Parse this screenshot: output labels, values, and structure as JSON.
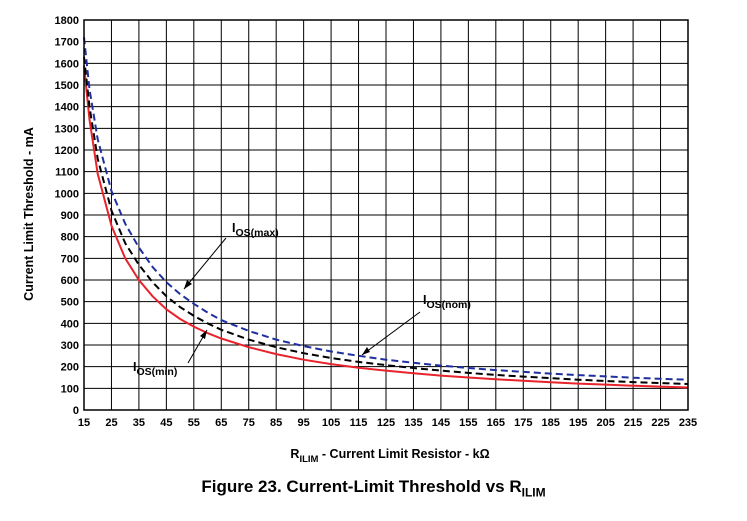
{
  "chart_data": {
    "type": "line",
    "xlabel_main": "R",
    "xlabel_sub": "ILIM",
    "xlabel_rest": " - Current Limit Resistor - kΩ",
    "ylabel": "Current Limit Threshold - mA",
    "xlim": [
      15,
      235
    ],
    "ylim": [
      0,
      1800
    ],
    "x_ticks": [
      15,
      25,
      35,
      45,
      55,
      65,
      75,
      85,
      95,
      105,
      115,
      125,
      135,
      145,
      155,
      165,
      175,
      185,
      195,
      205,
      215,
      225,
      235
    ],
    "y_ticks": [
      0,
      100,
      200,
      300,
      400,
      500,
      600,
      700,
      800,
      900,
      1000,
      1100,
      1200,
      1300,
      1400,
      1500,
      1600,
      1700,
      1800
    ],
    "grid": true,
    "series": [
      {
        "name_main": "I",
        "name_sub": "OS(max)",
        "color": "#1f2f9e",
        "dash": "7,4",
        "x": [
          15,
          17,
          20,
          25,
          30,
          35,
          40,
          45,
          50,
          55,
          60,
          65,
          75,
          85,
          95,
          105,
          115,
          125,
          135,
          145,
          155,
          165,
          175,
          185,
          195,
          205,
          215,
          225,
          235
        ],
        "y": [
          1720,
          1480,
          1250,
          1010,
          860,
          750,
          660,
          590,
          535,
          490,
          450,
          415,
          365,
          325,
          295,
          270,
          250,
          232,
          218,
          205,
          194,
          184,
          176,
          168,
          161,
          155,
          149,
          144,
          140
        ]
      },
      {
        "name_main": "I",
        "name_sub": "OS(nom)",
        "color": "#000000",
        "dash": "7,4",
        "x": [
          15,
          17,
          20,
          25,
          30,
          35,
          40,
          45,
          50,
          55,
          60,
          65,
          75,
          85,
          95,
          105,
          115,
          125,
          135,
          145,
          155,
          165,
          175,
          185,
          195,
          205,
          215,
          225,
          235
        ],
        "y": [
          1630,
          1400,
          1160,
          920,
          770,
          670,
          590,
          525,
          475,
          435,
          400,
          370,
          325,
          290,
          262,
          240,
          222,
          207,
          194,
          182,
          171,
          162,
          154,
          147,
          140,
          134,
          129,
          124,
          120
        ]
      },
      {
        "name_main": "I",
        "name_sub": "OS(min)",
        "color": "#e8232b",
        "dash": "",
        "x": [
          15,
          17,
          20,
          25,
          30,
          35,
          40,
          45,
          50,
          55,
          60,
          65,
          75,
          85,
          95,
          105,
          115,
          125,
          135,
          145,
          155,
          165,
          175,
          185,
          195,
          205,
          215,
          225,
          235
        ],
        "y": [
          1590,
          1340,
          1090,
          850,
          700,
          600,
          525,
          465,
          420,
          385,
          355,
          330,
          290,
          258,
          232,
          212,
          195,
          182,
          170,
          159,
          150,
          142,
          135,
          128,
          122,
          117,
          112,
          108,
          104
        ]
      }
    ]
  },
  "caption": {
    "main": "Figure 23.  Current-Limit Threshold vs R",
    "sub": "ILIM"
  }
}
